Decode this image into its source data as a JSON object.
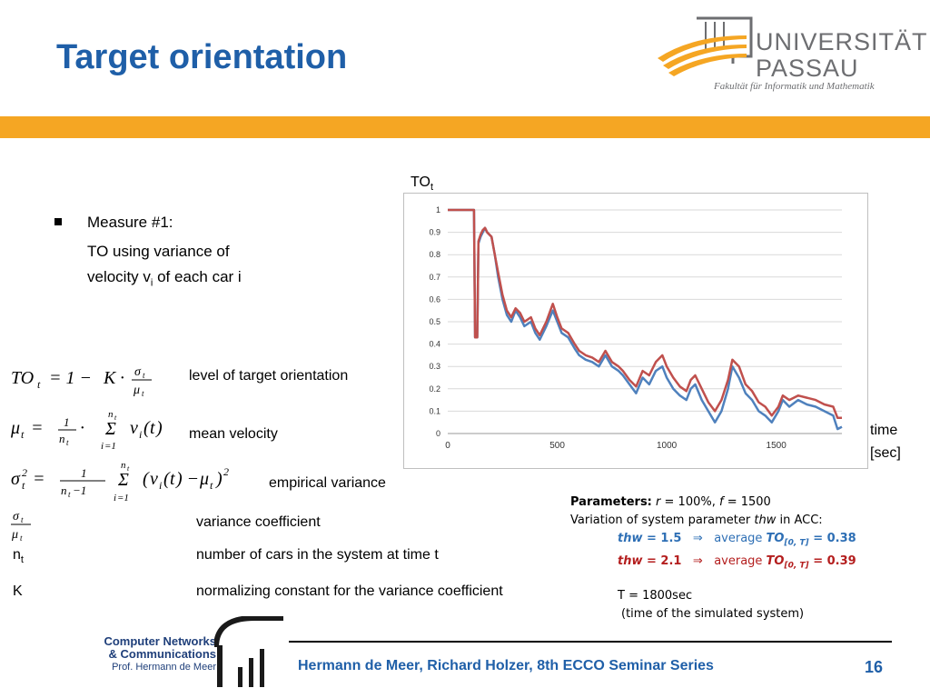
{
  "slide": {
    "title": "Target orientation",
    "page_number": "16",
    "footer": "Hermann de Meer, Richard Holzer, 8th ECCO Seminar Series"
  },
  "university": {
    "name_line1": "UNIVERSITÄT",
    "name_line2": "PASSAU",
    "faculty": "Fakultät für Informatik und Mathematik"
  },
  "cnc_logo": {
    "line1": "Computer Networks",
    "line2": "& Communications",
    "line3": "Prof. Hermann de Meer"
  },
  "measure": {
    "heading": "Measure #1:",
    "line1": "TO using variance of",
    "line2_prefix": "velocity v",
    "line2_sub": "i",
    "line2_suffix": " of each car i"
  },
  "definitions": [
    {
      "description": "level of target orientation"
    },
    {
      "description": "mean velocity"
    },
    {
      "description": "empirical variance"
    },
    {
      "description": "variance coefficient"
    },
    {
      "symbol": "n",
      "symbol_sub": "t",
      "description": "number of cars in the system at time t"
    },
    {
      "symbol": "K",
      "description": "normalizing constant for the variance coefficient"
    }
  ],
  "chart_axis_labels": {
    "y_main": "TO",
    "y_sub": "t",
    "x_line1": "time",
    "x_line2": "[sec]"
  },
  "parameters": {
    "label": "Parameters:",
    "r_text": " = 100%, ",
    "f_text": " = 1500",
    "variation": "Variation of system parameter ",
    "variation_var": "thw",
    "variation_suffix": " in ACC:",
    "blue_value": "= 1.5",
    "blue_result": "= 0.38",
    "red_value": "= 2.1",
    "red_result": "= 0.39",
    "average": "average",
    "to_sub": "[0, T]",
    "T_line": "T = 1800sec",
    "T_note": "(time of the simulated system)"
  },
  "colors": {
    "title_blue": "#1f5fa8",
    "band_orange": "#f5a623",
    "series_blue": "#4f81bd",
    "series_red": "#c0504d"
  },
  "chart_data": {
    "type": "line",
    "xlim": [
      0,
      1800
    ],
    "ylim": [
      0,
      1
    ],
    "x_ticks": [
      "0",
      "500",
      "1000",
      "1500"
    ],
    "y_ticks": [
      "0",
      "0.1",
      "0.2",
      "0.3",
      "0.4",
      "0.5",
      "0.6",
      "0.7",
      "0.8",
      "0.9",
      "1"
    ],
    "grid": true,
    "series": [
      {
        "color": "#4f81bd",
        "x": [
          0,
          100,
          120,
          125,
          135,
          140,
          150,
          160,
          170,
          180,
          200,
          215,
          230,
          250,
          270,
          290,
          310,
          330,
          350,
          380,
          400,
          420,
          450,
          480,
          500,
          520,
          550,
          580,
          600,
          630,
          660,
          690,
          720,
          750,
          780,
          800,
          830,
          860,
          890,
          920,
          950,
          980,
          1000,
          1030,
          1060,
          1090,
          1110,
          1130,
          1160,
          1190,
          1220,
          1250,
          1280,
          1300,
          1330,
          1360,
          1390,
          1420,
          1450,
          1480,
          1510,
          1530,
          1560,
          1600,
          1640,
          1680,
          1720,
          1760,
          1780,
          1800
        ],
        "y": [
          1,
          1,
          1,
          0.43,
          0.43,
          0.85,
          0.88,
          0.9,
          0.92,
          0.9,
          0.88,
          0.8,
          0.7,
          0.6,
          0.53,
          0.5,
          0.55,
          0.52,
          0.48,
          0.5,
          0.45,
          0.42,
          0.48,
          0.55,
          0.5,
          0.45,
          0.43,
          0.38,
          0.35,
          0.33,
          0.32,
          0.3,
          0.35,
          0.3,
          0.28,
          0.26,
          0.22,
          0.18,
          0.25,
          0.22,
          0.28,
          0.3,
          0.25,
          0.2,
          0.17,
          0.15,
          0.2,
          0.22,
          0.15,
          0.1,
          0.05,
          0.1,
          0.2,
          0.3,
          0.25,
          0.18,
          0.15,
          0.1,
          0.08,
          0.05,
          0.1,
          0.15,
          0.12,
          0.15,
          0.13,
          0.12,
          0.1,
          0.08,
          0.02,
          0.03
        ]
      },
      {
        "color": "#c0504d",
        "x": [
          0,
          100,
          120,
          125,
          135,
          140,
          150,
          160,
          170,
          180,
          200,
          215,
          230,
          250,
          270,
          290,
          310,
          330,
          350,
          380,
          400,
          420,
          450,
          480,
          500,
          520,
          550,
          580,
          600,
          630,
          660,
          690,
          720,
          750,
          780,
          800,
          830,
          860,
          890,
          920,
          950,
          980,
          1000,
          1030,
          1060,
          1090,
          1110,
          1130,
          1160,
          1190,
          1220,
          1250,
          1280,
          1300,
          1330,
          1360,
          1390,
          1420,
          1450,
          1480,
          1510,
          1530,
          1560,
          1600,
          1640,
          1680,
          1720,
          1760,
          1780,
          1800
        ],
        "y": [
          1,
          1,
          1,
          0.43,
          0.43,
          0.86,
          0.89,
          0.91,
          0.92,
          0.9,
          0.88,
          0.8,
          0.72,
          0.62,
          0.55,
          0.52,
          0.56,
          0.54,
          0.5,
          0.52,
          0.47,
          0.44,
          0.5,
          0.58,
          0.52,
          0.47,
          0.45,
          0.4,
          0.37,
          0.35,
          0.34,
          0.32,
          0.37,
          0.32,
          0.3,
          0.28,
          0.24,
          0.21,
          0.28,
          0.26,
          0.32,
          0.35,
          0.3,
          0.25,
          0.21,
          0.19,
          0.24,
          0.26,
          0.2,
          0.14,
          0.1,
          0.15,
          0.24,
          0.33,
          0.3,
          0.22,
          0.19,
          0.14,
          0.12,
          0.08,
          0.12,
          0.17,
          0.15,
          0.17,
          0.16,
          0.15,
          0.13,
          0.12,
          0.07,
          0.07
        ]
      }
    ]
  }
}
